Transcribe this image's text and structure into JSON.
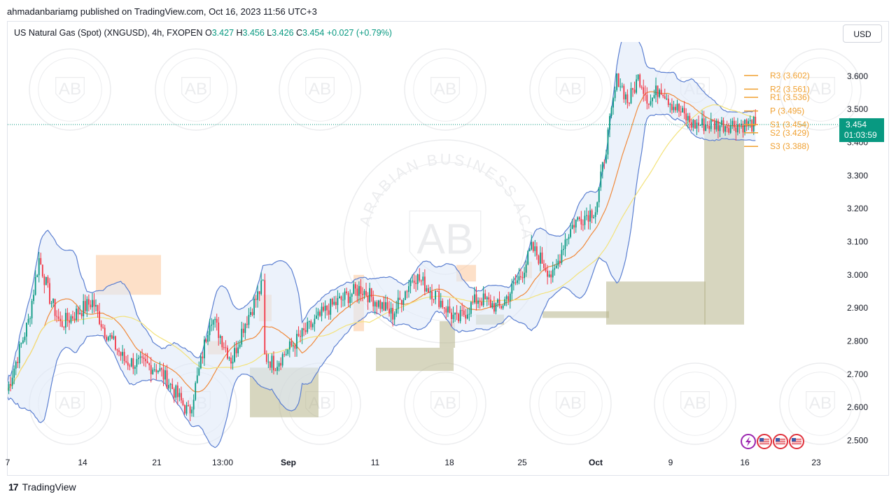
{
  "header": {
    "publisher_line": "ahmadanbariamg published on TradingView.com, Oct 16, 2023 11:56 UTC+3"
  },
  "legend": {
    "symbol": "US Natural Gas (Spot) (XNGUSD), 4h, FXOPEN",
    "o_label": "O",
    "o": "3.427",
    "h_label": "H",
    "h": "3.456",
    "l_label": "L",
    "l": "3.426",
    "c_label": "C",
    "c": "3.454",
    "change": "+0.027 (+0.79%)"
  },
  "currency_button": "USD",
  "footer": {
    "brand_text": "TradingView",
    "brand_logo": "17"
  },
  "watermark_text": "ARABIAN BUSINESS ACADEMY",
  "watermark_mark": "AB",
  "colors": {
    "up": "#089981",
    "down": "#f23645",
    "bb": "#5b7fd1",
    "ma_fast": "#f08a3c",
    "ma_slow": "#f3e27a",
    "pivot": "#f0a030",
    "price_badge": "#089981"
  },
  "chart_data": {
    "type": "candlestick",
    "title": "",
    "ylim": [
      2.46,
      3.72
    ],
    "y_ticks": [
      "2.500",
      "2.600",
      "2.700",
      "2.800",
      "2.900",
      "3.000",
      "3.100",
      "3.200",
      "3.300",
      "3.400",
      "3.500",
      "3.600"
    ],
    "x_ticks": [
      "7",
      "14",
      "21",
      "13:00",
      "Sep",
      "11",
      "18",
      "25",
      "Oct",
      "9",
      "16",
      "23"
    ],
    "last_price": "3.454",
    "countdown": "01:03:59",
    "pivots": [
      {
        "label": "R3 (3.602)",
        "value": 3.602
      },
      {
        "label": "R2 (3.561)",
        "value": 3.561
      },
      {
        "label": "R1 (3.536)",
        "value": 3.536
      },
      {
        "label": "P (3.495)",
        "value": 3.495
      },
      {
        "label": "S1 (3.454)",
        "value": 3.454
      },
      {
        "label": "S2 (3.429)",
        "value": 3.429
      },
      {
        "label": "S3 (3.388)",
        "value": 3.388
      }
    ],
    "keypoints": [
      [
        "Aug 7",
        2.65
      ],
      [
        "Aug 9",
        2.86
      ],
      [
        "Aug 10",
        3.05
      ],
      [
        "Aug 11",
        2.93
      ],
      [
        "Aug 12",
        2.85
      ],
      [
        "Aug 15",
        2.92
      ],
      [
        "Aug 16",
        2.84
      ],
      [
        "Aug 18",
        2.74
      ],
      [
        "Aug 21",
        2.72
      ],
      [
        "Aug 22",
        2.68
      ],
      [
        "Aug 24",
        2.58
      ],
      [
        "Aug 25",
        2.72
      ],
      [
        "Aug 26",
        2.88
      ],
      [
        "Aug 28",
        2.74
      ],
      [
        "Aug 29",
        2.84
      ],
      [
        "Aug 31",
        2.98
      ],
      [
        "Sep 1",
        2.87
      ],
      [
        "Sep 3",
        2.85
      ],
      [
        "Sep 5",
        2.78
      ],
      [
        "Sep 7",
        2.73
      ],
      [
        "Sep 9",
        2.8
      ],
      [
        "Sep 12",
        2.9
      ],
      [
        "Sep 15",
        2.96
      ],
      [
        "Sep 18",
        2.88
      ],
      [
        "Sep 20",
        3.0
      ],
      [
        "Sep 22",
        2.94
      ],
      [
        "Sep 24",
        2.86
      ],
      [
        "Sep 26",
        2.93
      ],
      [
        "Sep 28",
        2.9
      ],
      [
        "Sep 30",
        3.0
      ],
      [
        "Oct 1",
        3.08
      ],
      [
        "Oct 2",
        3.04
      ],
      [
        "Oct 3",
        2.99
      ],
      [
        "Oct 4",
        3.1
      ],
      [
        "Oct 5",
        3.16
      ],
      [
        "Oct 7",
        3.2
      ],
      [
        "Oct 8",
        3.4
      ],
      [
        "Oct 9",
        3.6
      ],
      [
        "Oct 10",
        3.52
      ],
      [
        "Oct 11",
        3.6
      ],
      [
        "Oct 12",
        3.52
      ],
      [
        "Oct 13",
        3.57
      ],
      [
        "Oct 14",
        3.52
      ],
      [
        "Oct 16",
        3.454
      ]
    ]
  }
}
